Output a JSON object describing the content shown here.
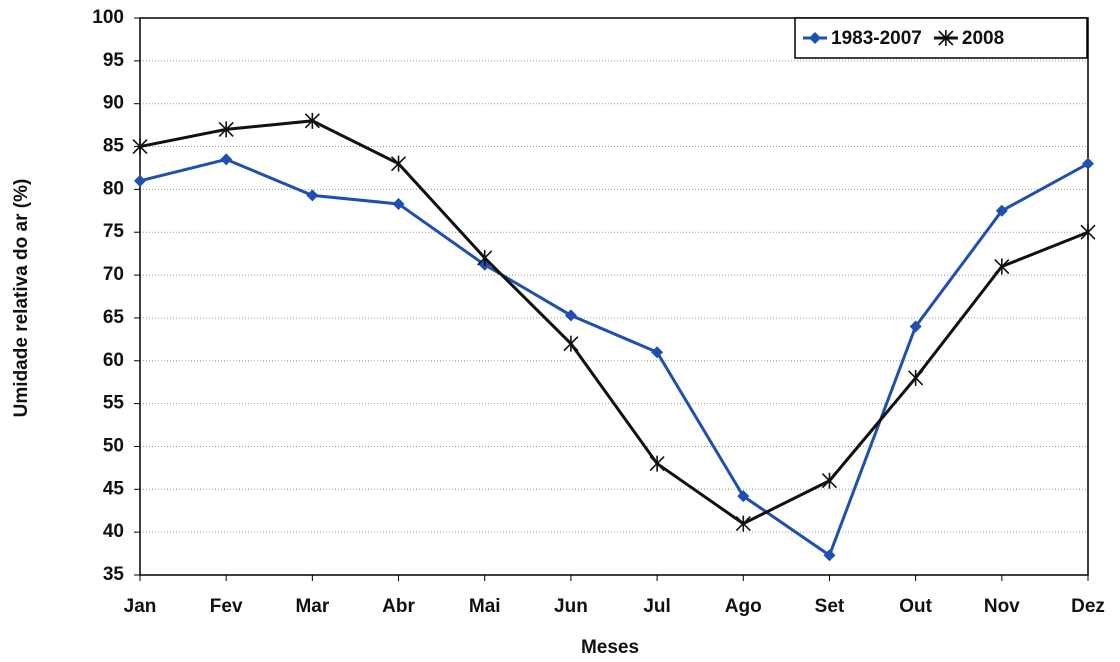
{
  "chart_data": {
    "type": "line",
    "x_label": "Meses",
    "y_label": "Umidade relativa do ar (%)",
    "categories": [
      "Jan",
      "Fev",
      "Mar",
      "Abr",
      "Mai",
      "Jun",
      "Jul",
      "Ago",
      "Set",
      "Out",
      "Nov",
      "Dez"
    ],
    "series": [
      {
        "name": "1983-2007",
        "color": "#1f4fb0",
        "marker": "diamond",
        "values": [
          81,
          83.5,
          79.3,
          78.3,
          71.2,
          65.3,
          61,
          44.2,
          37.3,
          64,
          77.5,
          83
        ]
      },
      {
        "name": "2008",
        "color": "#111111",
        "marker": "star",
        "values": [
          85,
          87,
          88,
          83,
          72,
          62,
          48,
          41,
          46,
          58,
          71,
          75
        ]
      }
    ],
    "ylim": [
      35,
      100
    ],
    "yticks": [
      35,
      40,
      45,
      50,
      55,
      60,
      65,
      70,
      75,
      80,
      85,
      90,
      95,
      100
    ],
    "grid": true,
    "legend": "top-right"
  }
}
